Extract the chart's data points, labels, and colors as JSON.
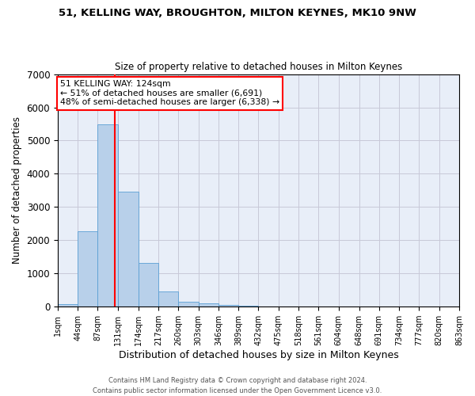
{
  "title1": "51, KELLING WAY, BROUGHTON, MILTON KEYNES, MK10 9NW",
  "title2": "Size of property relative to detached houses in Milton Keynes",
  "xlabel": "Distribution of detached houses by size in Milton Keynes",
  "ylabel": "Number of detached properties",
  "footer1": "Contains HM Land Registry data © Crown copyright and database right 2024.",
  "footer2": "Contains public sector information licensed under the Open Government Licence v3.0.",
  "annotation_line1": "51 KELLING WAY: 124sqm",
  "annotation_line2": "← 51% of detached houses are smaller (6,691)",
  "annotation_line3": "48% of semi-detached houses are larger (6,338) →",
  "property_size": 124,
  "bar_color": "#b8d0ea",
  "bar_edge_color": "#5a9fd4",
  "vline_color": "red",
  "annotation_box_edge": "red",
  "background_color": "#e8eef8",
  "grid_color": "#c8c8d8",
  "ylim": [
    0,
    7000
  ],
  "bin_edges": [
    1,
    44,
    87,
    131,
    174,
    217,
    260,
    303,
    346,
    389,
    432,
    475,
    518,
    561,
    604,
    648,
    691,
    734,
    777,
    820,
    863
  ],
  "bar_heights": [
    75,
    2280,
    5480,
    3450,
    1320,
    470,
    155,
    90,
    60,
    30,
    5,
    0,
    0,
    0,
    0,
    0,
    0,
    0,
    0,
    0
  ],
  "tick_labels": [
    "1sqm",
    "44sqm",
    "87sqm",
    "131sqm",
    "174sqm",
    "217sqm",
    "260sqm",
    "303sqm",
    "346sqm",
    "389sqm",
    "432sqm",
    "475sqm",
    "518sqm",
    "561sqm",
    "604sqm",
    "648sqm",
    "691sqm",
    "734sqm",
    "777sqm",
    "820sqm",
    "863sqm"
  ],
  "ytick_labels": [
    "0",
    "1000",
    "2000",
    "3000",
    "4000",
    "5000",
    "6000",
    "7000"
  ],
  "ytick_vals": [
    0,
    1000,
    2000,
    3000,
    4000,
    5000,
    6000,
    7000
  ]
}
